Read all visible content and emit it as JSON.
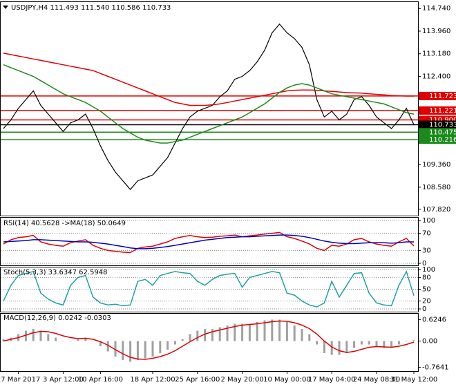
{
  "chart_data": [
    {
      "type": "line",
      "title": "USDJPY,H4  111.493 111.540 110.586 110.733",
      "categories": [
        null,
        null,
        "27 Mar 2017",
        null,
        null,
        null,
        null,
        null,
        "3 Apr 12:00",
        null,
        null,
        null,
        null,
        "10 Apr 16:00",
        null,
        null,
        null,
        null,
        null,
        null,
        "18 Apr 12:00",
        null,
        null,
        null,
        null,
        null,
        "25 Apr 16:00",
        null,
        null,
        null,
        null,
        null,
        "2 May 20:00",
        null,
        null,
        null,
        null,
        null,
        "10 May 00:00",
        null,
        null,
        null,
        null,
        null,
        "17 May 04:00",
        null,
        null,
        null,
        null,
        null,
        "24 May 08:00",
        null,
        null,
        null,
        null,
        "31 May 12:00"
      ],
      "ylim": [
        107.6,
        114.96
      ],
      "yticks": [
        {
          "value": 114.74,
          "label": "114.740"
        },
        {
          "value": 113.96,
          "label": "113.960"
        },
        {
          "value": 113.18,
          "label": "113.180"
        },
        {
          "value": 112.4,
          "label": "112.400"
        },
        {
          "value": 109.36,
          "label": "109.360"
        },
        {
          "value": 108.58,
          "label": "108.580"
        },
        {
          "value": 107.82,
          "label": "107.820"
        }
      ],
      "levels": [
        {
          "value": 111.723,
          "label": "111.723",
          "color": "#e00000"
        },
        {
          "value": 111.221,
          "label": "111.221",
          "color": "#e00000"
        },
        {
          "value": 110.9,
          "label": "110.900",
          "color": "#e00000"
        },
        {
          "value": 110.733,
          "label": "110.733",
          "color": "#000000"
        },
        {
          "value": 110.475,
          "label": "110.475",
          "color": "#1a8a1a"
        },
        {
          "value": 110.216,
          "label": "110.216",
          "color": "#1a8a1a"
        }
      ],
      "series": [
        {
          "name": "USDJPY",
          "color": "#000000",
          "values": [
            110.6,
            110.9,
            111.3,
            111.6,
            111.9,
            111.4,
            111.1,
            110.8,
            110.5,
            110.8,
            110.9,
            111.1,
            110.6,
            110.0,
            109.5,
            109.1,
            108.8,
            108.5,
            108.8,
            108.9,
            109.0,
            109.3,
            109.6,
            110.1,
            110.6,
            111.0,
            111.2,
            111.3,
            111.4,
            111.7,
            111.9,
            112.3,
            112.4,
            112.6,
            112.9,
            113.3,
            113.9,
            114.2,
            113.9,
            113.7,
            113.4,
            112.8,
            111.6,
            111.0,
            111.2,
            110.9,
            111.1,
            111.6,
            111.7,
            111.4,
            111.0,
            110.8,
            110.6,
            110.9,
            111.3,
            110.733
          ]
        },
        {
          "name": "MA red",
          "color": "#e00000",
          "values": [
            113.2,
            113.15,
            113.1,
            113.05,
            113.0,
            112.95,
            112.9,
            112.85,
            112.8,
            112.75,
            112.7,
            112.65,
            112.6,
            112.5,
            112.4,
            112.3,
            112.2,
            112.1,
            112.0,
            111.9,
            111.8,
            111.7,
            111.6,
            111.5,
            111.45,
            111.4,
            111.4,
            111.4,
            111.42,
            111.45,
            111.5,
            111.55,
            111.6,
            111.65,
            111.7,
            111.75,
            111.8,
            111.85,
            111.9,
            111.92,
            111.93,
            111.93,
            111.92,
            111.9,
            111.88,
            111.86,
            111.84,
            111.83,
            111.82,
            111.8,
            111.78,
            111.76,
            111.74,
            111.73,
            111.72,
            111.72
          ]
        },
        {
          "name": "MA green",
          "color": "#1a8a1a",
          "values": [
            112.8,
            112.7,
            112.6,
            112.5,
            112.4,
            112.25,
            112.1,
            111.95,
            111.8,
            111.7,
            111.6,
            111.5,
            111.35,
            111.2,
            111.0,
            110.8,
            110.6,
            110.45,
            110.3,
            110.2,
            110.15,
            110.1,
            110.1,
            110.15,
            110.2,
            110.3,
            110.4,
            110.5,
            110.6,
            110.7,
            110.8,
            110.9,
            111.0,
            111.15,
            111.3,
            111.45,
            111.65,
            111.85,
            112.0,
            112.1,
            112.15,
            112.1,
            112.0,
            111.9,
            111.8,
            111.75,
            111.7,
            111.65,
            111.6,
            111.55,
            111.5,
            111.45,
            111.35,
            111.25,
            111.15,
            111.1
          ]
        }
      ]
    },
    {
      "type": "line",
      "title": "RSI(14) 40.5628  ->MA(18) 50.0649",
      "ylim": [
        0,
        100
      ],
      "yticks": [
        100,
        70,
        30,
        0
      ],
      "grid": true,
      "series": [
        {
          "name": "RSI",
          "color": "#e00000",
          "values": [
            45,
            55,
            60,
            62,
            65,
            50,
            45,
            42,
            40,
            48,
            52,
            55,
            42,
            35,
            30,
            28,
            26,
            25,
            35,
            38,
            40,
            45,
            50,
            58,
            62,
            65,
            62,
            60,
            61,
            63,
            64,
            66,
            62,
            64,
            66,
            68,
            70,
            72,
            62,
            58,
            52,
            45,
            35,
            30,
            42,
            40,
            45,
            55,
            58,
            50,
            45,
            42,
            40,
            50,
            58,
            40.5628
          ]
        },
        {
          "name": "MA",
          "color": "#0000c0",
          "values": [
            50,
            51,
            52,
            53,
            55,
            55,
            54,
            53,
            52,
            51,
            50,
            50,
            49,
            47,
            45,
            42,
            39,
            36,
            34,
            34,
            35,
            37,
            39,
            42,
            45,
            48,
            51,
            54,
            56,
            58,
            60,
            61,
            62,
            62,
            63,
            64,
            65,
            66,
            66,
            65,
            63,
            60,
            56,
            52,
            49,
            47,
            46,
            46,
            47,
            48,
            48,
            48,
            47,
            48,
            50,
            50.0649
          ]
        }
      ]
    },
    {
      "type": "line",
      "title": "Stoch(5,3,3) 33.6347 62.5948",
      "ylim": [
        0,
        100
      ],
      "yticks": [
        100,
        80,
        50,
        20,
        0
      ],
      "grid": true,
      "series": [
        {
          "name": "Stoch",
          "color": "#20a0a0",
          "values": [
            20,
            60,
            85,
            90,
            95,
            40,
            25,
            15,
            10,
            60,
            80,
            85,
            30,
            15,
            10,
            12,
            8,
            10,
            70,
            75,
            60,
            85,
            90,
            95,
            92,
            90,
            70,
            60,
            75,
            85,
            88,
            90,
            55,
            80,
            85,
            90,
            95,
            92,
            40,
            35,
            20,
            10,
            5,
            15,
            70,
            30,
            60,
            90,
            92,
            40,
            15,
            10,
            8,
            60,
            95,
            33.6347
          ]
        }
      ]
    },
    {
      "type": "line",
      "title": "MACD(12,26,9) 0.0242 -0.0303",
      "ylim": [
        -0.85,
        0.75
      ],
      "yticks": [
        0.6246,
        {
          "value": 0,
          "label": "0.00"
        },
        -0.7641
      ],
      "series": [
        {
          "name": "MACD",
          "type": "bar",
          "color": "#a0a0a0",
          "values": [
            0.05,
            0.1,
            0.2,
            0.3,
            0.35,
            0.3,
            0.2,
            0.1,
            0.0,
            0.0,
            0.05,
            0.1,
            0.0,
            -0.15,
            -0.3,
            -0.45,
            -0.55,
            -0.6,
            -0.55,
            -0.5,
            -0.45,
            -0.35,
            -0.25,
            -0.1,
            0.05,
            0.2,
            0.3,
            0.35,
            0.35,
            0.4,
            0.45,
            0.5,
            0.5,
            0.5,
            0.55,
            0.6,
            0.62,
            0.62,
            0.55,
            0.45,
            0.35,
            0.2,
            -0.1,
            -0.35,
            -0.4,
            -0.4,
            -0.35,
            -0.2,
            -0.1,
            -0.1,
            -0.15,
            -0.2,
            -0.2,
            -0.1,
            0.0,
            0.0242
          ]
        },
        {
          "name": "Signal",
          "color": "#e00000",
          "values": [
            0.0,
            0.05,
            0.1,
            0.17,
            0.24,
            0.28,
            0.27,
            0.22,
            0.15,
            0.1,
            0.07,
            0.08,
            0.05,
            -0.02,
            -0.12,
            -0.25,
            -0.37,
            -0.47,
            -0.52,
            -0.53,
            -0.5,
            -0.45,
            -0.38,
            -0.28,
            -0.15,
            -0.02,
            0.1,
            0.2,
            0.27,
            0.32,
            0.37,
            0.42,
            0.46,
            0.48,
            0.5,
            0.53,
            0.56,
            0.58,
            0.57,
            0.53,
            0.46,
            0.36,
            0.2,
            0.0,
            -0.17,
            -0.28,
            -0.33,
            -0.3,
            -0.24,
            -0.18,
            -0.16,
            -0.17,
            -0.18,
            -0.15,
            -0.1,
            -0.0303
          ]
        }
      ]
    }
  ]
}
